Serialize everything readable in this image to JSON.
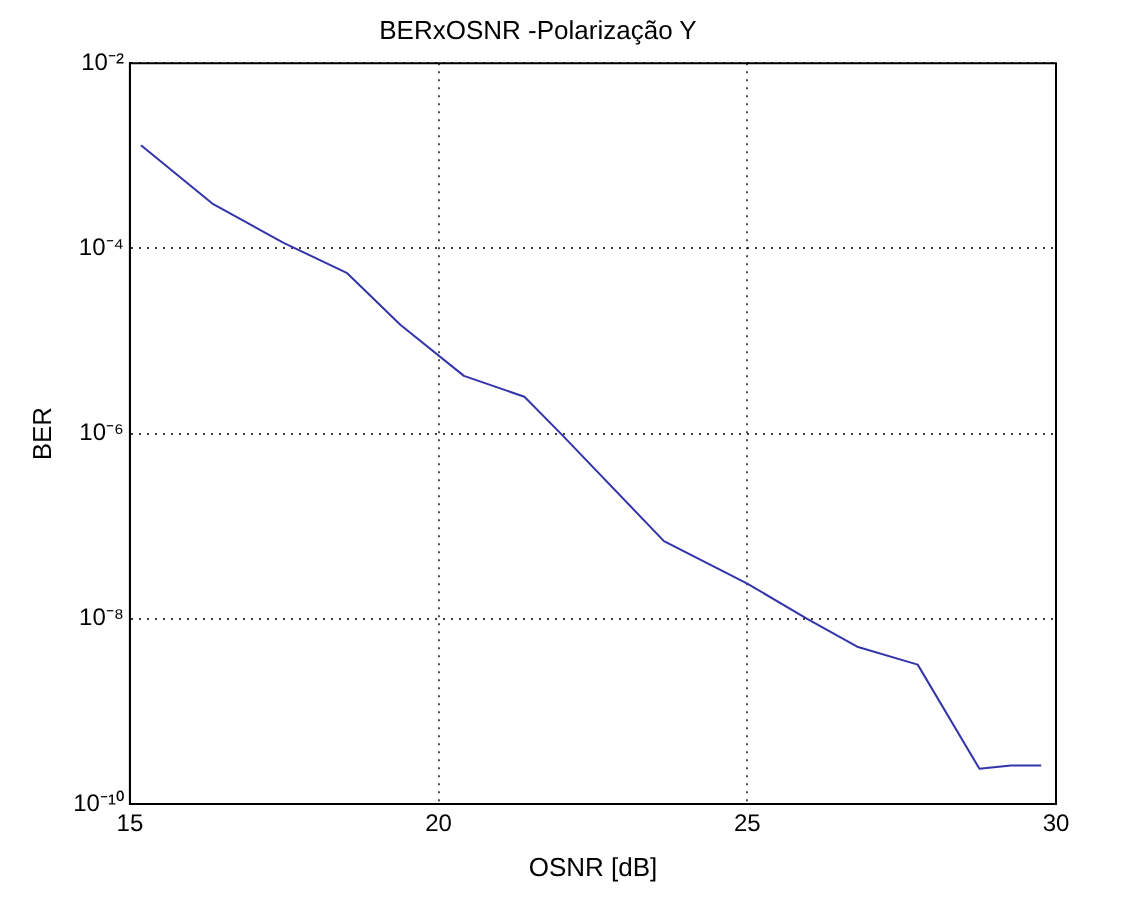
{
  "chart_data": {
    "type": "line",
    "title": "BERxOSNR -Polarização Y",
    "xlabel": "OSNR [dB]",
    "ylabel": "BER",
    "x": [
      15.18,
      16.35,
      17.49,
      18.52,
      19.38,
      20.41,
      21.39,
      21.98,
      23.65,
      25,
      25.97,
      26.78,
      27.76,
      28.76,
      29.27,
      29.76
    ],
    "series": [
      {
        "color": "#3333aa",
        "values": [
          0.0013,
          0.0003,
          0.000115,
          5.4e-05,
          1.5e-05,
          4.2e-06,
          2.5e-06,
          1e-06,
          6.9e-08,
          2.4e-08,
          1e-08,
          5e-09,
          3.2e-09,
          2.4e-10,
          2.6e-10,
          2.6e-10
        ]
      }
    ],
    "xlim": [
      15,
      30
    ],
    "xticks": [
      15,
      20,
      25,
      30
    ],
    "ylim": [
      1e-10,
      0.01
    ],
    "yticks": [
      {
        "value": 1e-10,
        "label": "10⁻¹⁰"
      },
      {
        "value": 1e-08,
        "label": "10⁻⁸"
      },
      {
        "value": 1e-06,
        "label": "10⁻⁶"
      },
      {
        "value": 0.0001,
        "label": "10⁻⁴"
      },
      {
        "value": 0.01,
        "label": "10⁻²"
      }
    ],
    "log": "y",
    "grid": true,
    "legend": false,
    "marker": "none",
    "line_style": "solid"
  }
}
